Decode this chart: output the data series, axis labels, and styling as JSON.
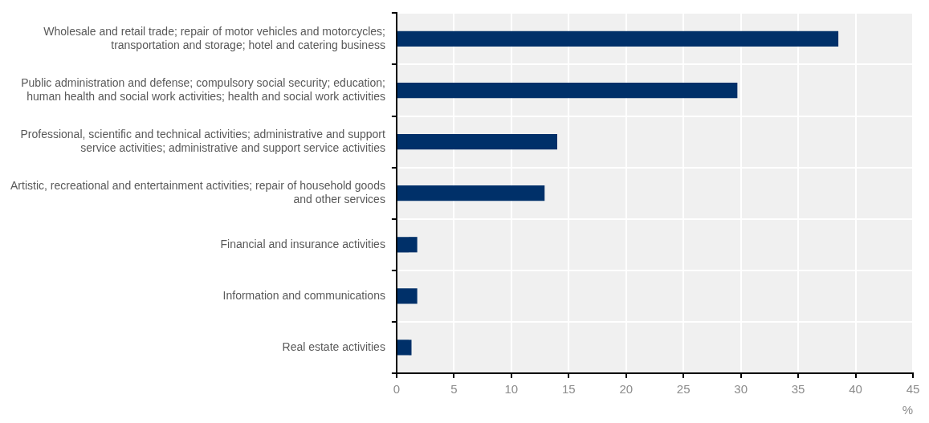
{
  "chart_data": {
    "type": "bar",
    "orientation": "horizontal",
    "categories": [
      "Wholesale and retail trade; repair of motor vehicles and motorcycles; transportation and storage; hotel and catering business",
      "Public administration and defense; compulsory social security; education; human health and social work activities; health and social work activities",
      "Professional, scientific and technical activities; administrative and support service activities; administrative and support service activities",
      "Artistic, recreational and entertainment activities; repair of household goods and other services",
      "Financial and insurance activities",
      "Information and communications",
      "Real estate activities"
    ],
    "values": [
      38.5,
      29.7,
      14.0,
      12.9,
      1.8,
      1.8,
      1.3
    ],
    "color": "#003069",
    "xlabel": "%",
    "xlim": [
      0,
      45
    ],
    "xticks": [
      0,
      5,
      10,
      15,
      20,
      25,
      30,
      35,
      40,
      45
    ],
    "grid": true
  }
}
